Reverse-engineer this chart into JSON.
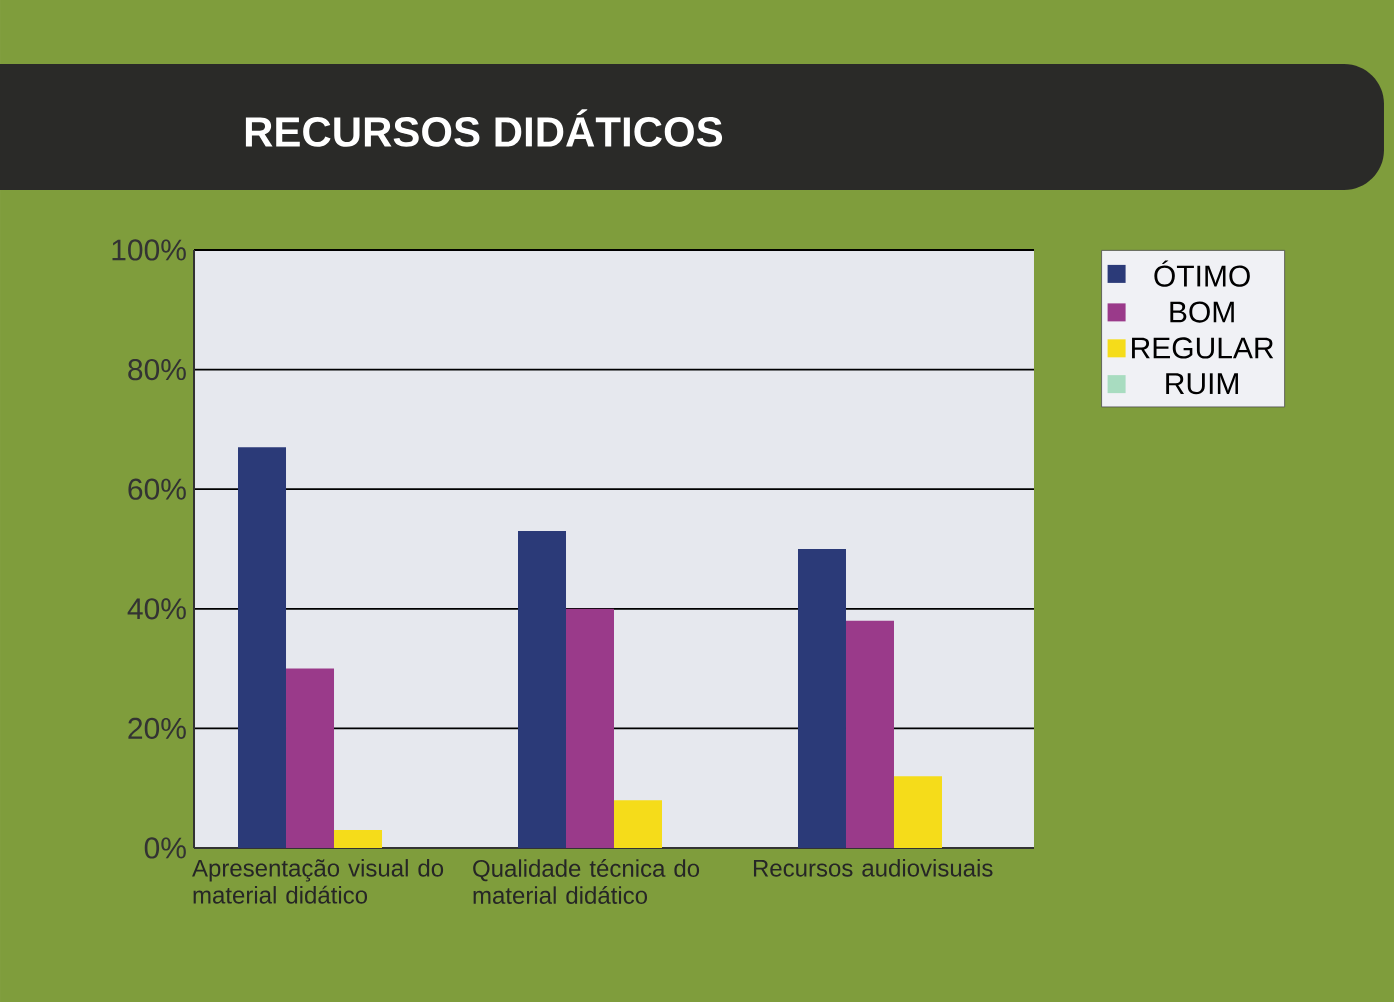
{
  "chart_data": {
    "type": "bar",
    "title": "RECURSOS DIDÁTICOS",
    "categories": [
      "Apresentação visual do material didático",
      "Qualidade técnica do material didático",
      "Recursos audiovisuais"
    ],
    "series": [
      {
        "name": "ÓTIMO",
        "color": "#2b3a78",
        "values": [
          67,
          53,
          50
        ]
      },
      {
        "name": "BOM",
        "color": "#9a3a8a",
        "values": [
          30,
          40,
          38
        ]
      },
      {
        "name": "REGULAR",
        "color": "#f5dc1a",
        "values": [
          3,
          8,
          12
        ]
      },
      {
        "name": "RUIM",
        "color": "#a8dcc0",
        "values": [
          0,
          0,
          0
        ]
      }
    ],
    "ylim": [
      0,
      100
    ],
    "yticks": [
      {
        "value": 0,
        "label": "0%"
      },
      {
        "value": 20,
        "label": "20%"
      },
      {
        "value": 40,
        "label": "40%"
      },
      {
        "value": 60,
        "label": "60%"
      },
      {
        "value": 80,
        "label": "80%"
      },
      {
        "value": 100,
        "label": "100%"
      }
    ],
    "grid": "y",
    "legend": "right"
  }
}
